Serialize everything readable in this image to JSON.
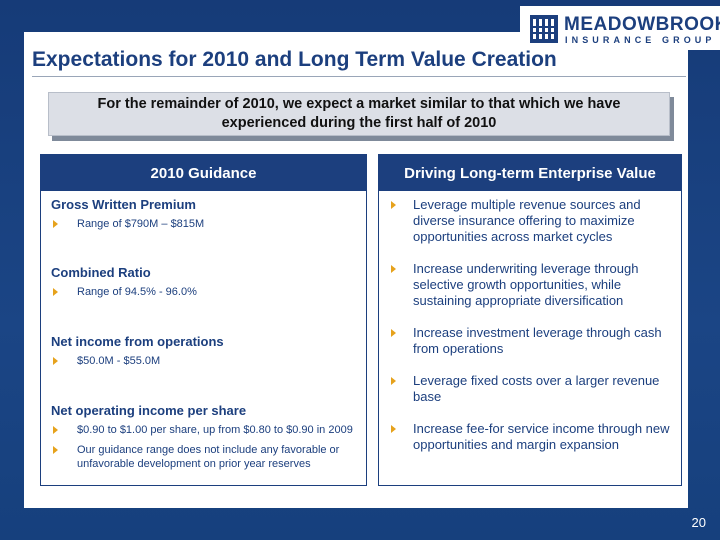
{
  "logo": {
    "name": "MEADOWBROOK",
    "subtitle": "INSURANCE GROUP",
    "icon": "building-columns-icon",
    "color": "#1c3f7e"
  },
  "title": "Expectations for 2010 and Long Term Value Creation",
  "callout": "For the remainder of 2010, we expect a market similar to that which we have experienced during the first half of 2010",
  "guidance": {
    "heading": "2010 Guidance",
    "sections": [
      {
        "title": "Gross Written Premium",
        "bullets": [
          "Range of $790M – $815M"
        ]
      },
      {
        "title": "Combined Ratio",
        "bullets": [
          "Range of 94.5% - 96.0%"
        ]
      },
      {
        "title": "Net income from operations",
        "bullets": [
          "$50.0M - $55.0M"
        ]
      },
      {
        "title": "Net operating income per share",
        "bullets": [
          "$0.90 to $1.00 per share, up from $0.80 to $0.90 in 2009",
          "Our guidance range does not include any favorable or unfavorable development on prior year reserves"
        ]
      }
    ]
  },
  "value": {
    "heading": "Driving Long-term Enterprise Value",
    "bullets": [
      "Leverage multiple revenue sources and diverse insurance offering to maximize opportunities across market cycles",
      "Increase underwriting leverage through selective growth opportunities, while sustaining appropriate diversification",
      "Increase investment leverage through cash from operations",
      "Leverage fixed costs over a larger revenue base",
      "Increase fee-for service income through new opportunities and margin expansion"
    ]
  },
  "page_number": "20",
  "colors": {
    "brand_navy": "#1c3f7e",
    "bullet_gold": "#e6a21c",
    "background_blue": "#1a3f7a"
  }
}
